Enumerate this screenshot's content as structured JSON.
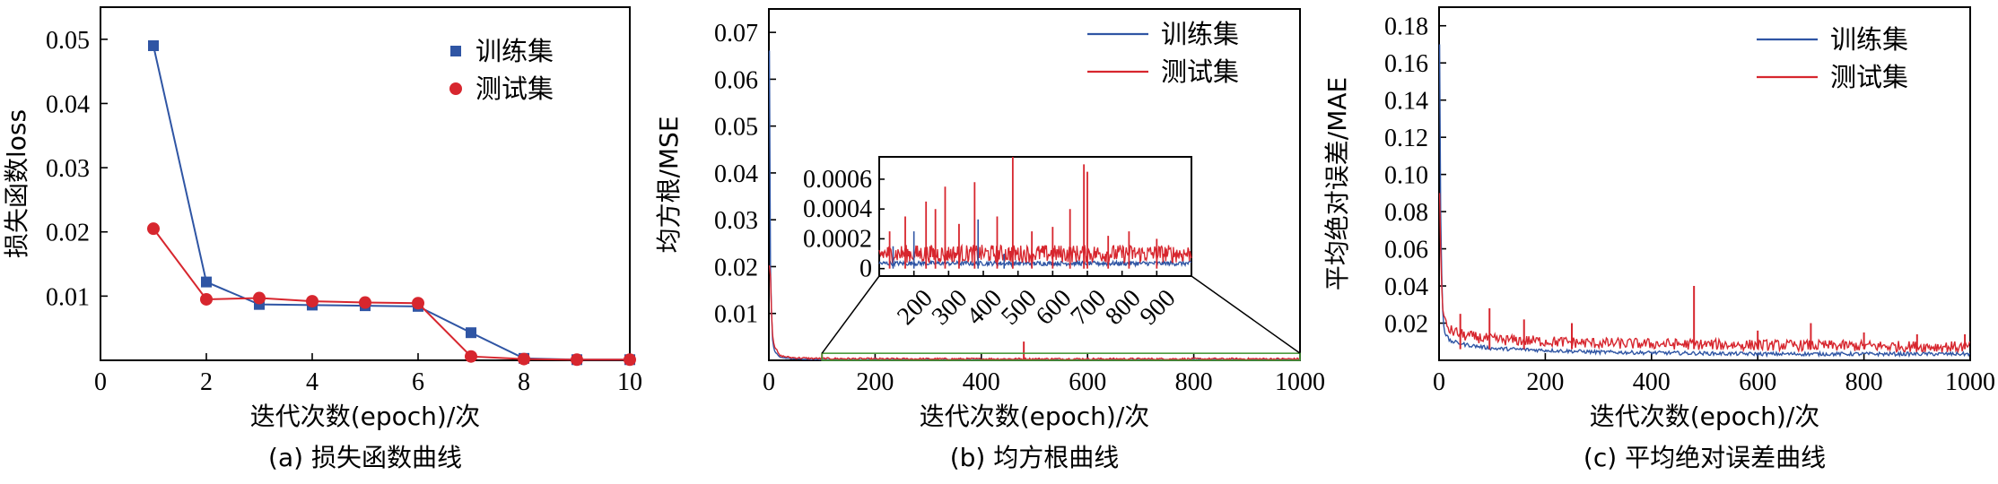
{
  "colors": {
    "train": "#2f55a4",
    "test": "#d7262e",
    "zoom_box": "#4a9a3a"
  },
  "chart_data": [
    {
      "type": "line",
      "panel": "a",
      "caption": "(a)  损失函数曲线",
      "xlabel": "迭代次数(epoch)/次",
      "ylabel": "损失函数loss",
      "xlim": [
        0,
        10
      ],
      "ylim": [
        0,
        0.055
      ],
      "xticks": [
        0,
        2,
        4,
        6,
        8,
        10
      ],
      "xtick_labels": [
        "0",
        "2",
        "4",
        "6",
        "8",
        "10"
      ],
      "yticks": [
        0.01,
        0.02,
        0.03,
        0.04,
        0.05
      ],
      "ytick_labels": [
        "0.01",
        "0.02",
        "0.03",
        "0.04",
        "0.05"
      ],
      "legend": [
        "训练集",
        "测试集"
      ],
      "series": [
        {
          "name": "训练集",
          "marker": "square",
          "x": [
            1,
            2,
            3,
            4,
            5,
            6,
            7,
            8,
            9,
            10
          ],
          "values": [
            0.049,
            0.0122,
            0.0087,
            0.0086,
            0.0085,
            0.0084,
            0.0043,
            0.0003,
            0.0001,
            0.0001
          ]
        },
        {
          "name": "测试集",
          "marker": "circle",
          "x": [
            1,
            2,
            3,
            4,
            5,
            6,
            7,
            8,
            9,
            10
          ],
          "values": [
            0.0205,
            0.0095,
            0.0097,
            0.0092,
            0.009,
            0.0089,
            0.0006,
            0.0002,
            0.0001,
            0.0001
          ]
        }
      ]
    },
    {
      "type": "line",
      "panel": "b",
      "caption": "(b)  均方根曲线",
      "xlabel": "迭代次数(epoch)/次",
      "ylabel": "均方根/MSE",
      "xlim": [
        0,
        1000
      ],
      "ylim": [
        0,
        0.075
      ],
      "xticks": [
        0,
        200,
        400,
        600,
        800,
        1000
      ],
      "xtick_labels": [
        "0",
        "200",
        "400",
        "600",
        "800",
        "1000"
      ],
      "yticks": [
        0.01,
        0.02,
        0.03,
        0.04,
        0.05,
        0.06,
        0.07
      ],
      "ytick_labels": [
        "0.01",
        "0.02",
        "0.03",
        "0.04",
        "0.05",
        "0.06",
        "0.07"
      ],
      "legend": [
        "训练集",
        "测试集"
      ],
      "series": [
        {
          "name": "训练集",
          "x": [
            1,
            3,
            6,
            10,
            20,
            40,
            80,
            200,
            500,
            1000
          ],
          "values": [
            0.066,
            0.02,
            0.005,
            0.002,
            0.0006,
            0.0003,
            0.0001,
            5e-05,
            5e-05,
            5e-05
          ]
        },
        {
          "name": "测试集",
          "x": [
            1,
            3,
            6,
            10,
            20,
            40,
            80,
            200,
            500,
            1000
          ],
          "values": [
            0.02,
            0.018,
            0.006,
            0.003,
            0.0008,
            0.0004,
            0.0002,
            0.0001,
            0.0001,
            0.0001
          ]
        }
      ],
      "spikes": [
        {
          "x": 480,
          "value": 0.004
        },
        {
          "x": 100,
          "value": 0.0015
        }
      ],
      "inset": {
        "xlim": [
          100,
          1000
        ],
        "ylim": [
          -5e-05,
          0.00075
        ],
        "xticks": [
          200,
          300,
          400,
          500,
          600,
          700,
          800,
          900
        ],
        "xtick_labels": [
          "200",
          "300",
          "400",
          "500",
          "600",
          "700",
          "800",
          "900"
        ],
        "yticks": [
          0,
          0.0002,
          0.0004,
          0.0006
        ],
        "ytick_labels": [
          "0",
          "0.0002",
          "0.0004",
          "0.0006"
        ],
        "test_spikes": [
          {
            "x": 130,
            "value": 0.00025
          },
          {
            "x": 175,
            "value": 0.00035
          },
          {
            "x": 235,
            "value": 0.00045
          },
          {
            "x": 262,
            "value": 0.0004
          },
          {
            "x": 290,
            "value": 0.00055
          },
          {
            "x": 330,
            "value": 0.0003
          },
          {
            "x": 375,
            "value": 0.00058
          },
          {
            "x": 440,
            "value": 0.00035
          },
          {
            "x": 485,
            "value": 0.00075
          },
          {
            "x": 540,
            "value": 0.00025
          },
          {
            "x": 600,
            "value": 0.00028
          },
          {
            "x": 650,
            "value": 0.0004
          },
          {
            "x": 690,
            "value": 0.0007
          },
          {
            "x": 700,
            "value": 0.00065
          },
          {
            "x": 760,
            "value": 0.00022
          },
          {
            "x": 820,
            "value": 0.00025
          },
          {
            "x": 900,
            "value": 0.0002
          }
        ],
        "train_spikes": [
          {
            "x": 140,
            "value": 0.00015
          },
          {
            "x": 200,
            "value": 0.00025
          },
          {
            "x": 385,
            "value": 0.00033
          },
          {
            "x": 460,
            "value": 0.0001
          }
        ]
      }
    },
    {
      "type": "line",
      "panel": "c",
      "caption": "(c) 平均绝对误差曲线",
      "xlabel": "迭代次数(epoch)/次",
      "ylabel": "平均绝对误差/MAE",
      "xlim": [
        0,
        1000
      ],
      "ylim": [
        0,
        0.19
      ],
      "xticks": [
        0,
        200,
        400,
        600,
        800,
        1000
      ],
      "xtick_labels": [
        "0",
        "200",
        "400",
        "600",
        "800",
        "1000"
      ],
      "yticks": [
        0.02,
        0.04,
        0.06,
        0.08,
        0.1,
        0.12,
        0.14,
        0.16,
        0.18
      ],
      "ytick_labels": [
        "0.02",
        "0.04",
        "0.06",
        "0.08",
        "0.10",
        "0.12",
        "0.14",
        "0.16",
        "0.18"
      ],
      "legend": [
        "训练集",
        "测试集"
      ],
      "series": [
        {
          "name": "训练集",
          "x": [
            1,
            3,
            6,
            10,
            20,
            50,
            100,
            300,
            600,
            1000
          ],
          "values": [
            0.17,
            0.08,
            0.03,
            0.015,
            0.01,
            0.008,
            0.006,
            0.004,
            0.003,
            0.003
          ]
        },
        {
          "name": "测试集",
          "x": [
            1,
            3,
            6,
            10,
            20,
            50,
            100,
            300,
            600,
            1000
          ],
          "values": [
            0.09,
            0.06,
            0.03,
            0.02,
            0.015,
            0.012,
            0.01,
            0.008,
            0.007,
            0.006
          ]
        }
      ],
      "spikes": [
        {
          "x": 95,
          "value": 0.028
        },
        {
          "x": 40,
          "value": 0.025
        },
        {
          "x": 160,
          "value": 0.022
        },
        {
          "x": 250,
          "value": 0.02
        },
        {
          "x": 480,
          "value": 0.04
        },
        {
          "x": 600,
          "value": 0.016
        },
        {
          "x": 700,
          "value": 0.02
        },
        {
          "x": 800,
          "value": 0.015
        },
        {
          "x": 900,
          "value": 0.014
        },
        {
          "x": 990,
          "value": 0.014
        }
      ]
    }
  ]
}
